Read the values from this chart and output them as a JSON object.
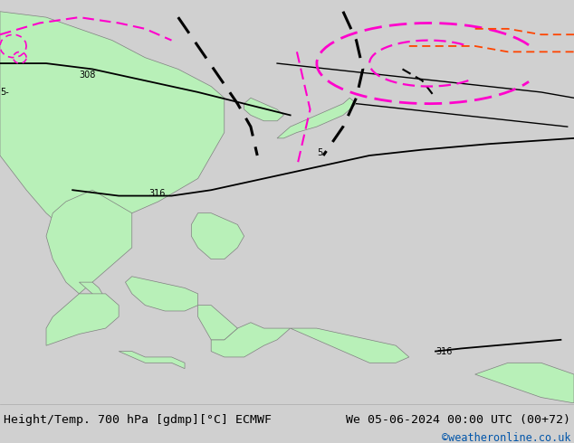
{
  "title_left": "Height/Temp. 700 hPa [gdmp][°C] ECMWF",
  "title_right": "We 05-06-2024 00:00 UTC (00+72)",
  "credit": "©weatheronline.co.uk",
  "bg_color": "#d0d0d0",
  "land_color": "#b8f0b8",
  "land_color2": "#c8f0c8",
  "border_color": "#808080",
  "sea_color": "#d0d0d0",
  "black_line_color": "#000000",
  "magenta_line_color": "#ff00cc",
  "red_line_color": "#ff4400",
  "bottom_bar_color": "#e0e0e0",
  "bottom_text_color": "#000000",
  "credit_color": "#0055aa",
  "font_size_title": 9.5,
  "font_size_credit": 8.5,
  "lon_min": 88,
  "lon_max": 175,
  "lat_min": -15,
  "lat_max": 55
}
